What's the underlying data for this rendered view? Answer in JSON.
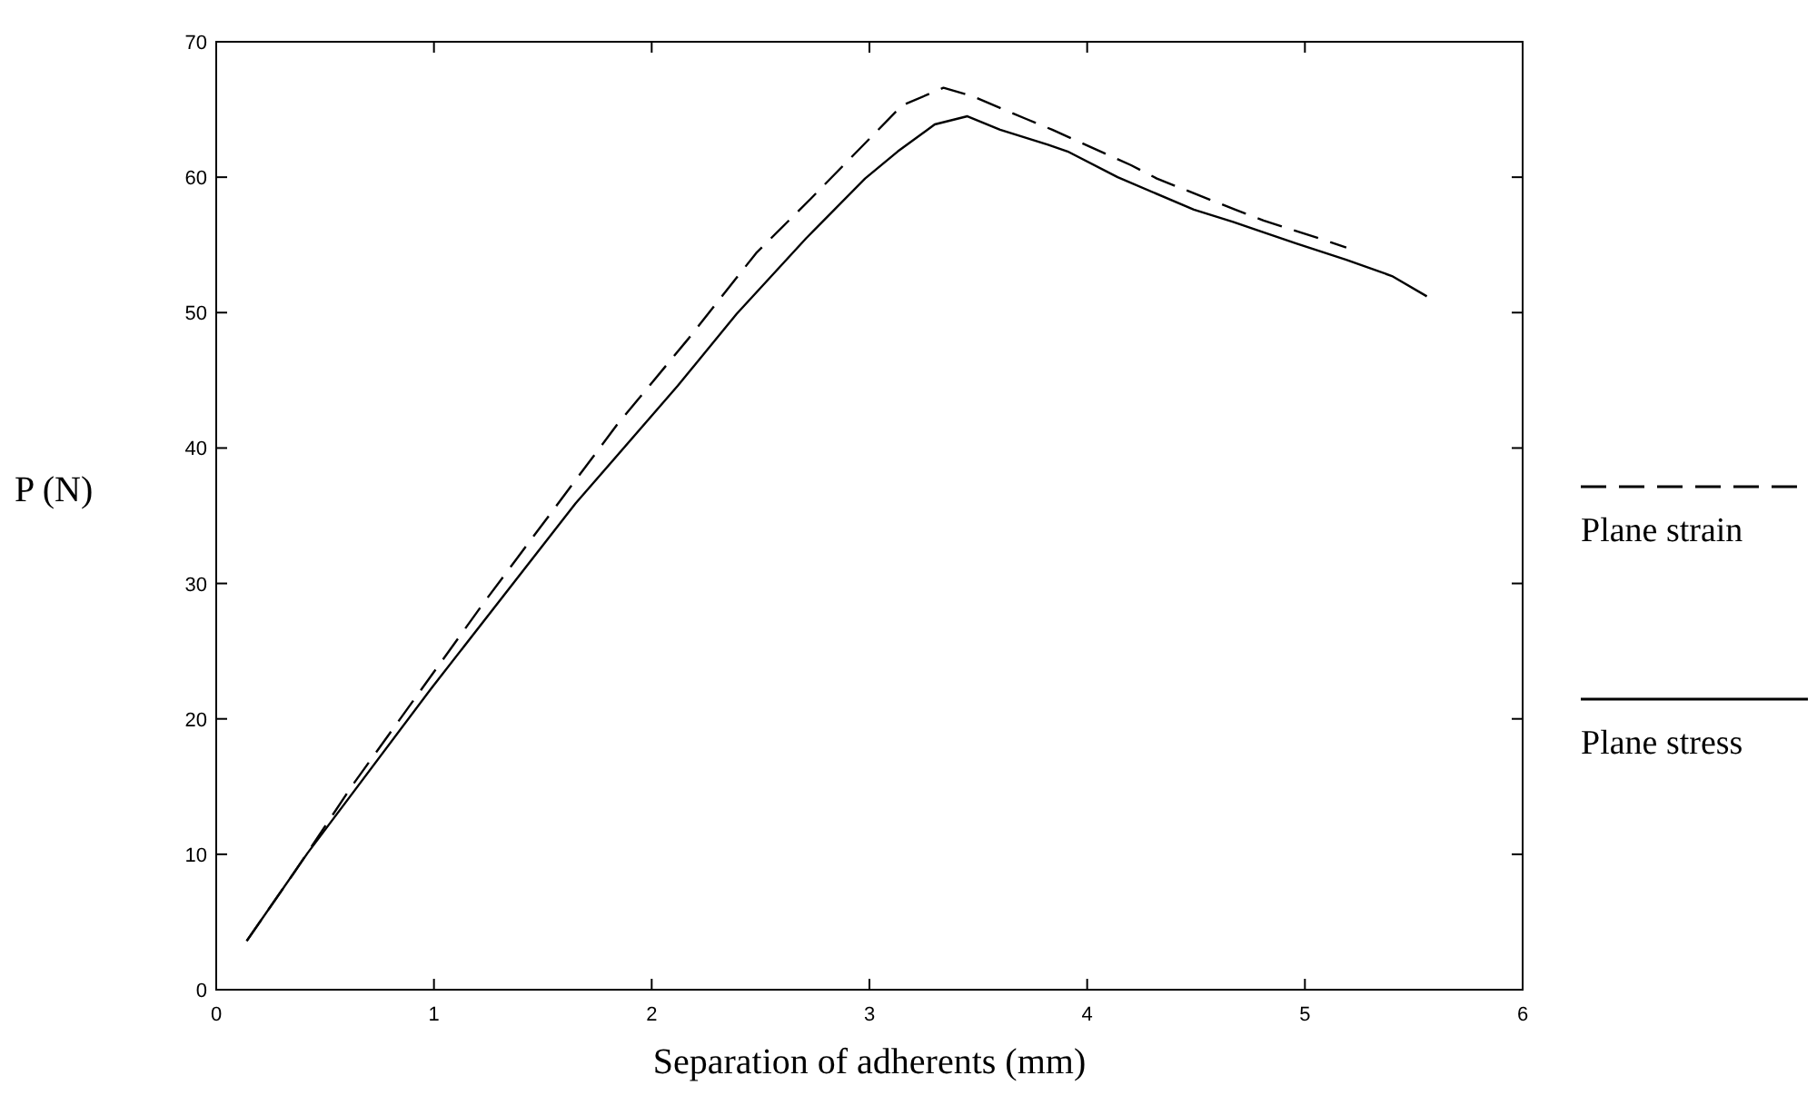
{
  "chart_data": {
    "type": "line",
    "xlabel": "Separation of adherents (mm)",
    "ylabel": "P (N)",
    "xlim": [
      0,
      6
    ],
    "xticks": [
      0,
      1,
      2,
      3,
      4,
      5,
      6
    ],
    "ylim": [
      0,
      70
    ],
    "yticks": [
      0,
      10,
      20,
      30,
      40,
      50,
      60,
      70
    ],
    "grid": false,
    "legend": "right",
    "marker": "none",
    "series": [
      {
        "name": "Plane strain",
        "color": "#000000",
        "line_style": "dashed",
        "x": [
          0.14,
          0.36,
          0.63,
          1.23,
          1.84,
          2.17,
          2.48,
          2.73,
          3.15,
          3.34,
          3.47,
          3.72,
          3.84,
          4.2,
          4.32,
          4.68,
          4.81,
          5.1,
          5.19
        ],
        "values": [
          3.6,
          8.7,
          15.2,
          28.6,
          41.7,
          48.1,
          54.4,
          58.4,
          65.3,
          66.6,
          66.0,
          64.3,
          63.5,
          60.9,
          59.9,
          57.6,
          56.8,
          55.3,
          54.8
        ]
      },
      {
        "name": "Plane stress",
        "color": "#000000",
        "line_style": "solid",
        "x": [
          0.14,
          0.42,
          0.99,
          1.65,
          2.12,
          2.39,
          2.71,
          2.98,
          3.13,
          3.3,
          3.45,
          3.6,
          3.82,
          3.91,
          4.14,
          4.49,
          4.67,
          4.96,
          5.19,
          5.4,
          5.56
        ],
        "values": [
          3.6,
          10.1,
          22.3,
          35.9,
          44.6,
          49.9,
          55.5,
          59.9,
          61.9,
          63.9,
          64.5,
          63.5,
          62.4,
          61.9,
          60.0,
          57.6,
          56.7,
          55.1,
          53.9,
          52.7,
          51.2
        ]
      }
    ]
  }
}
